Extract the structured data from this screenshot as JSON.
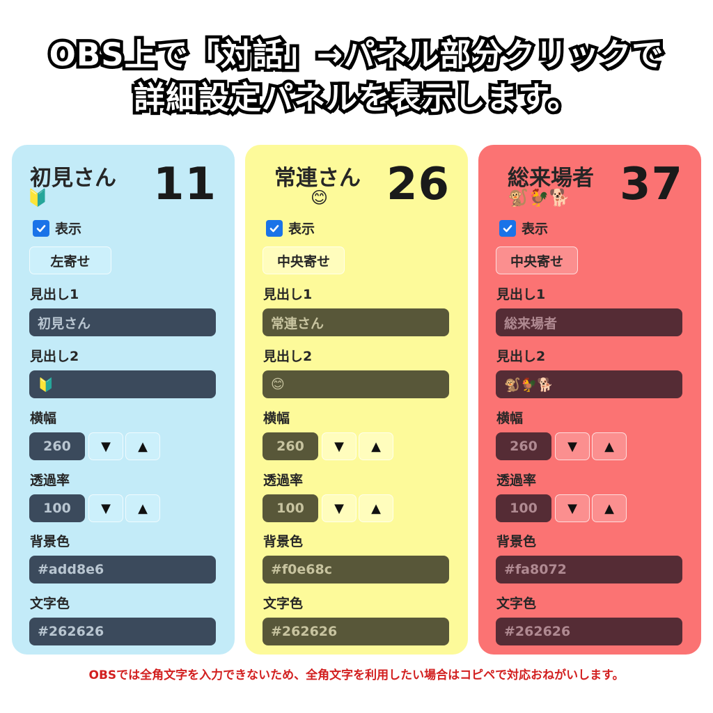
{
  "header": {
    "line1": "OBS上で「対話」→パネル部分クリックで",
    "line2": "詳細設定パネルを表示します。"
  },
  "labels": {
    "show": "表示",
    "heading1": "見出し1",
    "heading2": "見出し2",
    "width": "横幅",
    "opacity": "透過率",
    "bg_color": "背景色",
    "text_color": "文字色",
    "down": "▼",
    "up": "▲"
  },
  "panels": [
    {
      "name": "初見さん",
      "emoji": "🔰",
      "count": "11",
      "show_checked": true,
      "align": "左寄せ",
      "heading1": "初見さん",
      "heading2": "🔰",
      "width": "260",
      "opacity": "100",
      "bg_color": "#add8e6",
      "text_color": "#262626"
    },
    {
      "name": "常連さん",
      "emoji": "😊",
      "count": "26",
      "show_checked": true,
      "align": "中央寄せ",
      "heading1": "常連さん",
      "heading2": "😊",
      "width": "260",
      "opacity": "100",
      "bg_color": "#f0e68c",
      "text_color": "#262626"
    },
    {
      "name": "総来場者",
      "emoji": "🐒🐓🐕",
      "count": "37",
      "show_checked": true,
      "align": "中央寄せ",
      "heading1": "総来場者",
      "heading2": "🐒🐓🐕",
      "width": "260",
      "opacity": "100",
      "bg_color": "#fa8072",
      "text_color": "#262626"
    }
  ],
  "footnote": "OBSでは全角文字を入力できないため、全角文字を利用したい場合はコピペで対応おねがいします。"
}
